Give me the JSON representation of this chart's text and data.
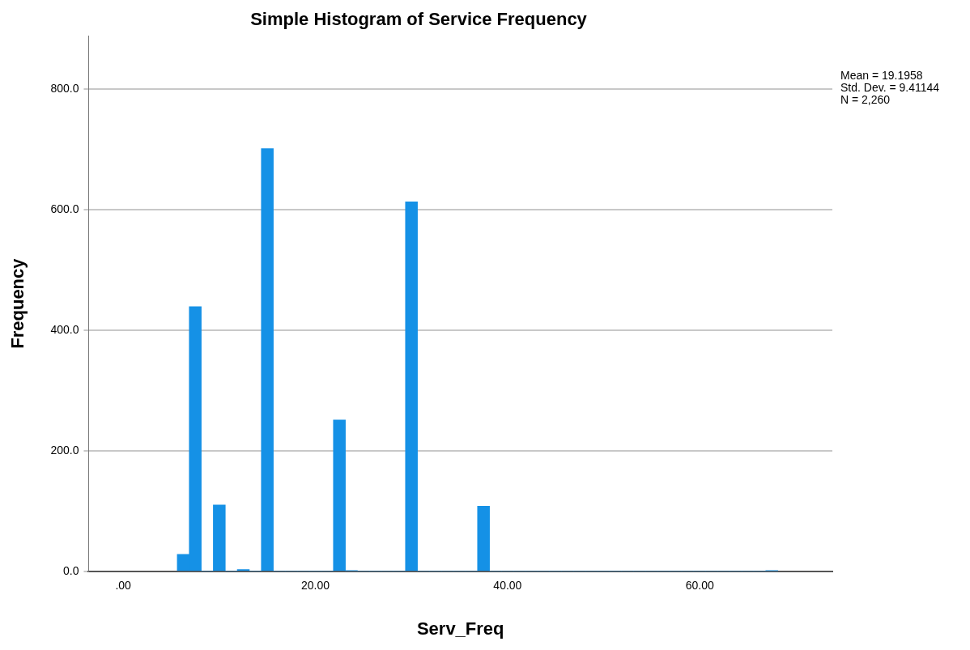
{
  "chart_data": {
    "type": "histogram",
    "title": "Simple Histogram of Service Frequency",
    "xlabel": "Serv_Freq",
    "ylabel": "Frequency",
    "bins": [
      5.625,
      6.875,
      8.125,
      9.375,
      10.625,
      11.875,
      13.125,
      14.375,
      15.625,
      16.875,
      18.125,
      19.375,
      20.625,
      21.875,
      23.125,
      24.375,
      25.625,
      26.875,
      28.125,
      29.375,
      30.625,
      31.875,
      33.125,
      34.375,
      35.625,
      36.875,
      38.125,
      39.375,
      40.625,
      41.875,
      43.125,
      44.375,
      45.625,
      46.875,
      48.125,
      49.375,
      50.625,
      51.875,
      53.125,
      54.375,
      55.625,
      56.875,
      58.125,
      59.375,
      60.625,
      61.875,
      63.125,
      64.375,
      65.625,
      66.875,
      68.125
    ],
    "values": [
      28,
      439,
      0,
      110,
      0,
      3,
      0,
      701,
      0,
      0,
      0,
      0,
      0,
      251,
      1,
      0,
      0,
      0,
      0,
      613,
      0,
      0,
      0,
      0,
      0,
      108,
      0,
      0,
      0,
      0,
      0,
      0,
      0,
      0,
      0,
      0,
      0,
      0,
      0,
      0,
      0,
      0,
      0,
      0,
      0,
      0,
      0,
      0,
      0,
      1
    ],
    "color": "#1591e6",
    "xlim": [
      -3.6,
      73.8
    ],
    "xticks": [
      {
        "value": 0,
        "label": ".00"
      },
      {
        "value": 20,
        "label": "20.00"
      },
      {
        "value": 40,
        "label": "40.00"
      },
      {
        "value": 60,
        "label": "60.00"
      }
    ],
    "ylim": [
      0,
      888
    ],
    "yticks": [
      {
        "value": 0,
        "label": "0.0"
      },
      {
        "value": 200,
        "label": "200.0"
      },
      {
        "value": 400,
        "label": "400.0"
      },
      {
        "value": 600,
        "label": "600.0"
      },
      {
        "value": 800,
        "label": "800.0"
      }
    ],
    "grid": "y",
    "legend": false,
    "annotations": [
      "Mean = 19.1958",
      "Std. Dev. = 9.41144",
      "N = 2,260"
    ]
  }
}
